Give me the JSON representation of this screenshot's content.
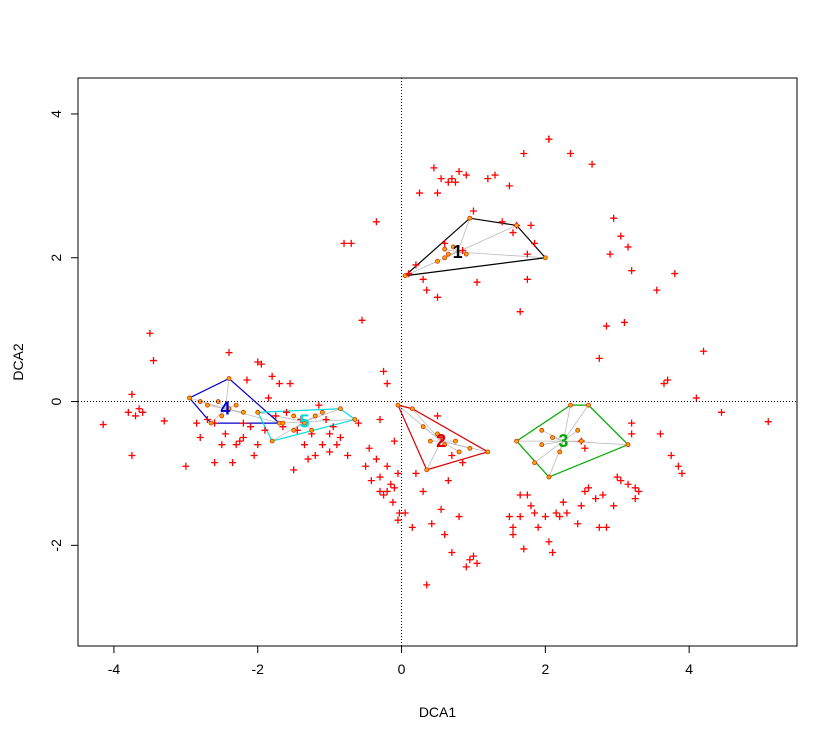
{
  "chart_data": {
    "type": "scatter",
    "title": "",
    "xlabel": "DCA1",
    "ylabel": "DCA2",
    "xlim": [
      -4.5,
      5.5
    ],
    "ylim": [
      -3.4,
      4.5
    ],
    "x_ticks": [
      -4,
      -2,
      0,
      2,
      4
    ],
    "y_ticks": [
      -2,
      0,
      2,
      4
    ],
    "grid": false,
    "reference_lines": {
      "x": 0,
      "y": 0,
      "style": "dotted"
    },
    "colors": {
      "species": "#ff0000",
      "sites_fill": "#ffa500",
      "sites_stroke": "#cc3300",
      "spider": "#bbbbbb",
      "group_1": "#000000",
      "group_2": "#dd0000",
      "group_3": "#00aa00",
      "group_4": "#0000cc",
      "group_5": "#00dddd"
    },
    "species_points": [
      [
        -4.15,
        -0.32
      ],
      [
        -3.8,
        -0.15
      ],
      [
        -3.75,
        0.1
      ],
      [
        -3.7,
        -0.2
      ],
      [
        -3.75,
        -0.75
      ],
      [
        -3.65,
        -0.1
      ],
      [
        -3.6,
        -0.15
      ],
      [
        -3.5,
        0.95
      ],
      [
        -3.45,
        0.57
      ],
      [
        -3.3,
        -0.27
      ],
      [
        -3.0,
        -0.9
      ],
      [
        -2.85,
        -0.3
      ],
      [
        -2.8,
        -0.5
      ],
      [
        -2.7,
        -0.25
      ],
      [
        -2.6,
        -0.3
      ],
      [
        -2.6,
        -0.85
      ],
      [
        -2.5,
        -0.6
      ],
      [
        -2.45,
        -0.45
      ],
      [
        -2.4,
        0.68
      ],
      [
        -2.35,
        -0.85
      ],
      [
        -2.3,
        -0.6
      ],
      [
        -2.25,
        -0.55
      ],
      [
        -2.2,
        -0.3
      ],
      [
        -2.2,
        -0.5
      ],
      [
        -2.15,
        0.3
      ],
      [
        -2.1,
        -0.35
      ],
      [
        -2.05,
        -0.75
      ],
      [
        -2.0,
        0.55
      ],
      [
        -2.0,
        -0.6
      ],
      [
        -1.95,
        0.52
      ],
      [
        -1.9,
        -0.4
      ],
      [
        -1.85,
        0.05
      ],
      [
        -1.8,
        0.35
      ],
      [
        -1.75,
        -0.2
      ],
      [
        -1.7,
        0.25
      ],
      [
        -1.65,
        -0.35
      ],
      [
        -1.6,
        -0.15
      ],
      [
        -1.55,
        0.25
      ],
      [
        -1.5,
        -0.95
      ],
      [
        -1.45,
        -0.4
      ],
      [
        -1.4,
        -0.25
      ],
      [
        -1.35,
        -0.6
      ],
      [
        -1.3,
        -0.8
      ],
      [
        -1.25,
        -0.45
      ],
      [
        -1.2,
        -0.75
      ],
      [
        -1.15,
        -0.05
      ],
      [
        -1.1,
        -0.6
      ],
      [
        -1.05,
        -0.25
      ],
      [
        -1.0,
        -0.45
      ],
      [
        -1.0,
        -0.7
      ],
      [
        -0.95,
        -0.35
      ],
      [
        -0.9,
        -0.6
      ],
      [
        -0.85,
        -0.5
      ],
      [
        -0.8,
        2.2
      ],
      [
        -0.75,
        -0.75
      ],
      [
        -0.7,
        2.2
      ],
      [
        -0.6,
        -0.3
      ],
      [
        -0.55,
        1.13
      ],
      [
        -0.5,
        -0.9
      ],
      [
        -0.45,
        -0.65
      ],
      [
        -0.42,
        -1.1
      ],
      [
        -0.35,
        -0.8
      ],
      [
        -0.3,
        -1.25
      ],
      [
        -0.25,
        -1.3
      ],
      [
        -0.2,
        -0.9
      ],
      [
        -0.15,
        -1.15
      ],
      [
        -0.12,
        -1.4
      ],
      [
        -0.1,
        -0.55
      ],
      [
        -0.05,
        -1.0
      ],
      [
        -0.03,
        -1.55
      ],
      [
        -0.35,
        2.5
      ],
      [
        -0.3,
        -0.25
      ],
      [
        -0.25,
        0.42
      ],
      [
        -0.2,
        0.25
      ],
      [
        -0.3,
        -1.05
      ],
      [
        -0.2,
        -1.25
      ],
      [
        -0.1,
        -1.2
      ],
      [
        -0.05,
        -1.65
      ],
      [
        0.05,
        -1.55
      ],
      [
        0.15,
        -1.75
      ],
      [
        0.2,
        -1.0
      ],
      [
        0.3,
        -1.25
      ],
      [
        0.35,
        -2.55
      ],
      [
        0.42,
        -1.7
      ],
      [
        0.5,
        -0.2
      ],
      [
        0.55,
        -1.5
      ],
      [
        0.6,
        -1.85
      ],
      [
        0.7,
        -2.1
      ],
      [
        0.8,
        -1.6
      ],
      [
        0.85,
        -0.85
      ],
      [
        0.9,
        -2.3
      ],
      [
        0.95,
        -2.2
      ],
      [
        1.0,
        -2.15
      ],
      [
        1.05,
        -2.25
      ],
      [
        0.55,
        -0.5
      ],
      [
        0.65,
        -1.1
      ],
      [
        0.7,
        -0.75
      ],
      [
        0.1,
        1.78
      ],
      [
        0.2,
        1.9
      ],
      [
        0.25,
        2.9
      ],
      [
        0.3,
        1.7
      ],
      [
        0.35,
        1.55
      ],
      [
        0.45,
        3.25
      ],
      [
        0.5,
        2.9
      ],
      [
        0.5,
        1.45
      ],
      [
        0.55,
        3.1
      ],
      [
        0.6,
        2.2
      ],
      [
        0.65,
        3.05
      ],
      [
        0.7,
        3.1
      ],
      [
        0.75,
        3.05
      ],
      [
        0.8,
        3.2
      ],
      [
        0.85,
        2.1
      ],
      [
        0.9,
        3.15
      ],
      [
        1.0,
        2.65
      ],
      [
        1.05,
        1.66
      ],
      [
        1.2,
        3.1
      ],
      [
        1.3,
        3.15
      ],
      [
        1.4,
        2.5
      ],
      [
        1.5,
        3.0
      ],
      [
        1.55,
        2.35
      ],
      [
        1.6,
        2.45
      ],
      [
        1.65,
        1.25
      ],
      [
        1.75,
        2.05
      ],
      [
        1.75,
        1.7
      ],
      [
        1.7,
        3.45
      ],
      [
        1.8,
        2.45
      ],
      [
        1.85,
        2.2
      ],
      [
        2.05,
        3.65
      ],
      [
        2.05,
        3.65
      ],
      [
        2.35,
        3.45
      ],
      [
        2.65,
        3.3
      ],
      [
        2.5,
        -0.55
      ],
      [
        2.55,
        -0.65
      ],
      [
        1.5,
        -1.6
      ],
      [
        1.55,
        -1.85
      ],
      [
        1.65,
        -1.6
      ],
      [
        1.7,
        -2.05
      ],
      [
        1.75,
        -1.3
      ],
      [
        1.8,
        -1.45
      ],
      [
        1.85,
        -1.55
      ],
      [
        1.9,
        -1.75
      ],
      [
        2.0,
        -1.6
      ],
      [
        2.05,
        -1.95
      ],
      [
        2.1,
        -2.1
      ],
      [
        2.15,
        -1.55
      ],
      [
        2.2,
        -1.6
      ],
      [
        2.25,
        -1.4
      ],
      [
        2.3,
        -1.55
      ],
      [
        2.45,
        -1.7
      ],
      [
        2.5,
        -1.45
      ],
      [
        2.55,
        -1.25
      ],
      [
        2.6,
        -1.2
      ],
      [
        2.7,
        -1.35
      ],
      [
        2.75,
        0.6
      ],
      [
        2.8,
        -1.3
      ],
      [
        2.75,
        -1.75
      ],
      [
        2.85,
        1.05
      ],
      [
        2.95,
        2.55
      ],
      [
        3.05,
        2.3
      ],
      [
        3.1,
        1.1
      ],
      [
        3.15,
        2.15
      ],
      [
        3.2,
        1.82
      ],
      [
        3.2,
        -0.3
      ],
      [
        3.2,
        -0.45
      ],
      [
        2.9,
        2.05
      ],
      [
        3.0,
        -1.05
      ],
      [
        3.05,
        -1.1
      ],
      [
        3.15,
        -1.15
      ],
      [
        3.25,
        -1.2
      ],
      [
        3.25,
        -1.35
      ],
      [
        3.3,
        -1.25
      ],
      [
        2.95,
        -1.45
      ],
      [
        2.85,
        -1.75
      ],
      [
        3.55,
        1.55
      ],
      [
        3.6,
        -0.45
      ],
      [
        3.65,
        0.25
      ],
      [
        3.7,
        0.3
      ],
      [
        3.75,
        -0.75
      ],
      [
        3.8,
        1.78
      ],
      [
        3.85,
        -0.9
      ],
      [
        3.9,
        -1.0
      ],
      [
        4.1,
        0.05
      ],
      [
        4.2,
        0.7
      ],
      [
        4.45,
        -0.15
      ],
      [
        5.1,
        -0.28
      ],
      [
        1.65,
        -1.3
      ],
      [
        1.55,
        -1.75
      ]
    ],
    "groups": [
      {
        "name": "1",
        "color_key": "group_1",
        "centroid": [
          0.78,
          2.08
        ],
        "hull": [
          [
            0.05,
            1.75
          ],
          [
            0.95,
            2.55
          ],
          [
            1.6,
            2.45
          ],
          [
            2.0,
            2.0
          ]
        ],
        "sites": [
          [
            0.05,
            1.75
          ],
          [
            0.95,
            2.55
          ],
          [
            1.6,
            2.45
          ],
          [
            2.0,
            2.0
          ],
          [
            0.6,
            2.0
          ],
          [
            0.65,
            2.05
          ],
          [
            0.72,
            2.15
          ],
          [
            0.6,
            2.12
          ],
          [
            0.5,
            1.95
          ],
          [
            0.9,
            2.05
          ]
        ]
      },
      {
        "name": "2",
        "color_key": "group_2",
        "centroid": [
          0.55,
          -0.55
        ],
        "hull": [
          [
            -0.05,
            -0.05
          ],
          [
            0.15,
            -0.1
          ],
          [
            1.2,
            -0.7
          ],
          [
            0.35,
            -0.95
          ]
        ],
        "sites": [
          [
            -0.05,
            -0.05
          ],
          [
            0.15,
            -0.1
          ],
          [
            1.2,
            -0.7
          ],
          [
            0.35,
            -0.95
          ],
          [
            0.5,
            -0.45
          ],
          [
            0.6,
            -0.6
          ],
          [
            0.75,
            -0.55
          ],
          [
            0.8,
            -0.7
          ],
          [
            0.3,
            -0.35
          ],
          [
            0.4,
            -0.55
          ],
          [
            0.95,
            -0.65
          ]
        ]
      },
      {
        "name": "3",
        "color_key": "group_3",
        "centroid": [
          2.25,
          -0.55
        ],
        "hull": [
          [
            1.6,
            -0.55
          ],
          [
            2.35,
            -0.05
          ],
          [
            2.6,
            -0.05
          ],
          [
            3.15,
            -0.6
          ],
          [
            2.05,
            -1.05
          ]
        ],
        "sites": [
          [
            1.6,
            -0.55
          ],
          [
            2.35,
            -0.05
          ],
          [
            2.6,
            -0.05
          ],
          [
            3.15,
            -0.6
          ],
          [
            2.05,
            -1.05
          ],
          [
            1.95,
            -0.4
          ],
          [
            2.1,
            -0.5
          ],
          [
            2.45,
            -0.4
          ],
          [
            2.5,
            -0.55
          ],
          [
            2.2,
            -0.7
          ],
          [
            1.85,
            -0.85
          ],
          [
            1.95,
            -0.6
          ]
        ]
      },
      {
        "name": "4",
        "color_key": "group_4",
        "centroid": [
          -2.45,
          -0.1
        ],
        "hull": [
          [
            -2.95,
            0.05
          ],
          [
            -2.4,
            0.32
          ],
          [
            -1.7,
            -0.3
          ],
          [
            -2.65,
            -0.3
          ]
        ],
        "sites": [
          [
            -2.95,
            0.05
          ],
          [
            -2.4,
            0.32
          ],
          [
            -1.7,
            -0.3
          ],
          [
            -2.65,
            -0.3
          ],
          [
            -2.7,
            -0.05
          ],
          [
            -2.55,
            0.0
          ],
          [
            -2.4,
            -0.1
          ],
          [
            -2.3,
            -0.05
          ],
          [
            -2.2,
            -0.15
          ],
          [
            -2.5,
            -0.2
          ],
          [
            -2.8,
            0.0
          ]
        ]
      },
      {
        "name": "5",
        "color_key": "group_5",
        "centroid": [
          -1.35,
          -0.28
        ],
        "hull": [
          [
            -2.0,
            -0.15
          ],
          [
            -1.8,
            -0.55
          ],
          [
            -0.65,
            -0.25
          ],
          [
            -0.85,
            -0.1
          ]
        ],
        "sites": [
          [
            -2.0,
            -0.15
          ],
          [
            -1.8,
            -0.55
          ],
          [
            -0.65,
            -0.25
          ],
          [
            -0.85,
            -0.1
          ],
          [
            -1.5,
            -0.2
          ],
          [
            -1.35,
            -0.3
          ],
          [
            -1.2,
            -0.2
          ],
          [
            -1.1,
            -0.15
          ],
          [
            -1.25,
            -0.4
          ],
          [
            -1.5,
            -0.4
          ],
          [
            -1.65,
            -0.3
          ]
        ]
      }
    ]
  }
}
